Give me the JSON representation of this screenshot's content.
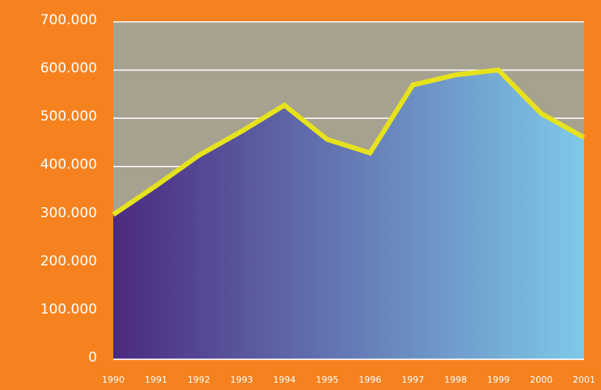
{
  "chart_data": {
    "type": "area",
    "categories": [
      "1990",
      "1991",
      "1992",
      "1993",
      "1994",
      "1995",
      "1996",
      "1997",
      "1998",
      "1999",
      "2000",
      "2001"
    ],
    "series": [
      {
        "color": "#e6e21c",
        "fill_colors": [
          "#4b2a80",
          "#7ec9e9"
        ],
        "values": [
          300000,
          360000,
          423000,
          473000,
          527000,
          456000,
          428000,
          569000,
          590000,
          600000,
          510000,
          460000
        ]
      }
    ],
    "ylim": [
      0,
      700000
    ],
    "yticks": [
      {
        "value": 0,
        "label": "0"
      },
      {
        "value": 100000,
        "label": "100.000"
      },
      {
        "value": 200000,
        "label": "200.000"
      },
      {
        "value": 300000,
        "label": "300.000"
      },
      {
        "value": 400000,
        "label": "400.000"
      },
      {
        "value": 500000,
        "label": "500.000"
      },
      {
        "value": 600000,
        "label": "600.000"
      },
      {
        "value": 700000,
        "label": "700.000"
      }
    ],
    "grid": true,
    "plot_background": "#a6a28f",
    "background": "#f5821f"
  }
}
